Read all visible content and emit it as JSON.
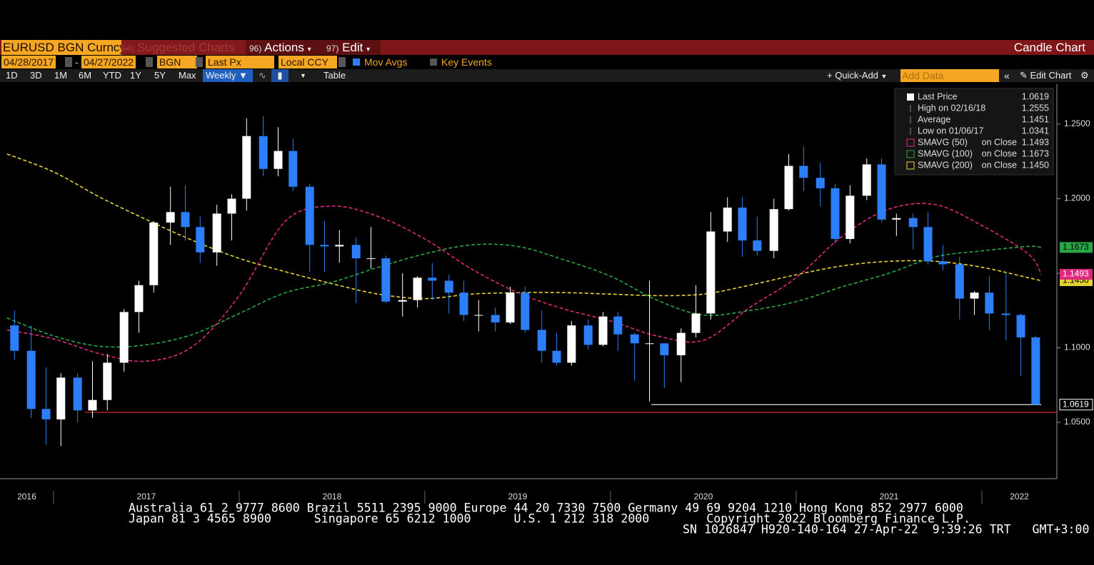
{
  "toolbar": {
    "ticker": "EURUSD BGN Curncy",
    "menus": [
      {
        "num": "94)",
        "label": "Suggested Charts"
      },
      {
        "num": "96)",
        "label": "Actions"
      },
      {
        "num": "97)",
        "label": "Edit"
      }
    ],
    "chart_type": "Candle Chart"
  },
  "settings": {
    "start": "04/28/2017",
    "end": "04/27/2022",
    "source": "BGN",
    "field": "Last Px",
    "currency": "Local CCY",
    "toggles": [
      "Mov Avgs",
      "Key Events"
    ]
  },
  "periods": [
    "1D",
    "3D",
    "1M",
    "6M",
    "YTD",
    "1Y",
    "5Y",
    "Max"
  ],
  "frequency": "Weekly",
  "view": "Table",
  "quick_add": "Quick-Add",
  "add_data": "Add Data",
  "edit_chart": "Edit Chart",
  "chart_data": {
    "type": "candlestick",
    "xlim": [
      2016.712,
      2022.404
    ],
    "ylim": [
      1.0127,
      1.2768
    ],
    "xticks": [
      {
        "value": 2016,
        "label": "2016"
      },
      {
        "value": 2017,
        "label": "2017"
      },
      {
        "value": 2018,
        "label": "2018"
      },
      {
        "value": 2019,
        "label": "2019"
      },
      {
        "value": 2020,
        "label": "2020"
      },
      {
        "value": 2021,
        "label": "2021"
      },
      {
        "value": 2022,
        "label": "2022"
      }
    ],
    "yticks": [
      {
        "value": 1.05,
        "label": "1.0500"
      },
      {
        "value": 1.1,
        "label": "1.1000"
      },
      {
        "value": 1.15,
        "label": "1.1500"
      },
      {
        "value": 1.2,
        "label": "1.2000"
      },
      {
        "value": 1.25,
        "label": "1.2500"
      }
    ],
    "up_color": "#ffffff",
    "down_color": "#2d7ff9",
    "candles": {
      "x": [
        2016.79,
        2016.88,
        2016.96,
        2017.04,
        2017.13,
        2017.21,
        2017.29,
        2017.38,
        2017.46,
        2017.54,
        2017.63,
        2017.71,
        2017.79,
        2017.88,
        2017.96,
        2018.04,
        2018.13,
        2018.21,
        2018.29,
        2018.38,
        2018.46,
        2018.54,
        2018.63,
        2018.71,
        2018.79,
        2018.88,
        2018.96,
        2019.04,
        2019.13,
        2019.21,
        2019.29,
        2019.38,
        2019.46,
        2019.54,
        2019.63,
        2019.71,
        2019.79,
        2019.88,
        2019.96,
        2020.04,
        2020.13,
        2020.21,
        2020.29,
        2020.38,
        2020.46,
        2020.54,
        2020.63,
        2020.71,
        2020.79,
        2020.88,
        2020.96,
        2021.04,
        2021.13,
        2021.21,
        2021.29,
        2021.38,
        2021.46,
        2021.54,
        2021.63,
        2021.71,
        2021.79,
        2021.88,
        2021.96,
        2022.04,
        2022.13,
        2022.21,
        2022.29
      ],
      "open": [
        1.115,
        1.098,
        1.059,
        1.052,
        1.08,
        1.058,
        1.065,
        1.09,
        1.124,
        1.142,
        1.184,
        1.191,
        1.181,
        1.164,
        1.19,
        1.2,
        1.242,
        1.22,
        1.232,
        1.208,
        1.169,
        1.168,
        1.169,
        1.16,
        1.16,
        1.131,
        1.132,
        1.147,
        1.145,
        1.137,
        1.122,
        1.122,
        1.117,
        1.137,
        1.112,
        1.098,
        1.09,
        1.115,
        1.102,
        1.121,
        1.109,
        1.103,
        1.103,
        1.095,
        1.11,
        1.123,
        1.178,
        1.194,
        1.172,
        1.165,
        1.193,
        1.222,
        1.214,
        1.207,
        1.173,
        1.202,
        1.223,
        1.186,
        1.187,
        1.181,
        1.158,
        1.156,
        1.133,
        1.137,
        1.123,
        1.122,
        1.107
      ],
      "high": [
        1.125,
        1.115,
        1.087,
        1.083,
        1.083,
        1.091,
        1.096,
        1.126,
        1.145,
        1.185,
        1.208,
        1.209,
        1.188,
        1.196,
        1.203,
        1.254,
        1.2555,
        1.248,
        1.24,
        1.21,
        1.185,
        1.179,
        1.174,
        1.181,
        1.162,
        1.15,
        1.148,
        1.157,
        1.149,
        1.145,
        1.132,
        1.127,
        1.141,
        1.141,
        1.125,
        1.11,
        1.118,
        1.119,
        1.124,
        1.124,
        1.11,
        1.145,
        1.103,
        1.113,
        1.142,
        1.191,
        1.201,
        1.201,
        1.188,
        1.2,
        1.23,
        1.235,
        1.224,
        1.21,
        1.209,
        1.227,
        1.227,
        1.19,
        1.19,
        1.191,
        1.169,
        1.161,
        1.138,
        1.148,
        1.15,
        1.123,
        1.108
      ],
      "low": [
        1.092,
        1.053,
        1.035,
        1.0341,
        1.05,
        1.053,
        1.058,
        1.084,
        1.11,
        1.137,
        1.169,
        1.172,
        1.157,
        1.155,
        1.172,
        1.192,
        1.215,
        1.215,
        1.205,
        1.151,
        1.151,
        1.157,
        1.13,
        1.153,
        1.13,
        1.121,
        1.127,
        1.132,
        1.123,
        1.118,
        1.111,
        1.111,
        1.116,
        1.11,
        1.09,
        1.088,
        1.088,
        1.099,
        1.101,
        1.098,
        1.078,
        1.064,
        1.073,
        1.077,
        1.107,
        1.119,
        1.171,
        1.161,
        1.162,
        1.16,
        1.192,
        1.205,
        1.195,
        1.17,
        1.17,
        1.199,
        1.184,
        1.175,
        1.166,
        1.156,
        1.152,
        1.119,
        1.122,
        1.112,
        1.105,
        1.081,
        1.0619
      ],
      "close": [
        1.098,
        1.059,
        1.052,
        1.08,
        1.058,
        1.065,
        1.09,
        1.124,
        1.142,
        1.184,
        1.191,
        1.181,
        1.164,
        1.19,
        1.2,
        1.242,
        1.22,
        1.232,
        1.208,
        1.169,
        1.168,
        1.169,
        1.16,
        1.16,
        1.131,
        1.132,
        1.147,
        1.145,
        1.137,
        1.122,
        1.122,
        1.117,
        1.137,
        1.112,
        1.098,
        1.09,
        1.115,
        1.102,
        1.121,
        1.109,
        1.103,
        1.103,
        1.095,
        1.11,
        1.123,
        1.178,
        1.194,
        1.172,
        1.165,
        1.193,
        1.222,
        1.214,
        1.207,
        1.173,
        1.202,
        1.223,
        1.186,
        1.187,
        1.181,
        1.158,
        1.156,
        1.133,
        1.137,
        1.123,
        1.122,
        1.107,
        1.0619
      ]
    },
    "ma_x": [
      2016.75,
      2017,
      2017.25,
      2017.5,
      2017.75,
      2018,
      2018.25,
      2018.5,
      2018.75,
      2019,
      2019.25,
      2019.5,
      2019.75,
      2020,
      2020.25,
      2020.5,
      2020.75,
      2021,
      2021.25,
      2021.5,
      2021.75,
      2022,
      2022.25,
      2022.32
    ],
    "series": [
      {
        "name": "SMAVG (50)",
        "note": "on Close",
        "color": "#e0287e",
        "line_style": "dashed",
        "last_value": 1.1493,
        "values": [
          1.112,
          1.106,
          1.096,
          1.091,
          1.101,
          1.135,
          1.185,
          1.195,
          1.188,
          1.173,
          1.153,
          1.137,
          1.126,
          1.118,
          1.108,
          1.105,
          1.127,
          1.147,
          1.175,
          1.193,
          1.196,
          1.182,
          1.163,
          1.1493
        ]
      },
      {
        "name": "SMAVG (100)",
        "note": "on Close",
        "color": "#27a844",
        "line_style": "dashed",
        "last_value": 1.1673,
        "values": [
          1.12,
          1.108,
          1.101,
          1.102,
          1.109,
          1.123,
          1.137,
          1.144,
          1.154,
          1.163,
          1.169,
          1.168,
          1.159,
          1.148,
          1.132,
          1.122,
          1.125,
          1.131,
          1.141,
          1.15,
          1.161,
          1.165,
          1.168,
          1.1673
        ]
      },
      {
        "name": "SMAVG (200)",
        "note": "on Close",
        "color": "#e6d332",
        "line_style": "dashed",
        "last_value": {
          "value": 1.145,
          "label": "1.1450"
        },
        "values": [
          1.23,
          1.218,
          1.201,
          1.186,
          1.172,
          1.16,
          1.151,
          1.143,
          1.136,
          1.133,
          1.136,
          1.137,
          1.137,
          1.136,
          1.135,
          1.136,
          1.142,
          1.149,
          1.155,
          1.158,
          1.158,
          1.154,
          1.147,
          1.145
        ]
      }
    ],
    "ref_lines": [
      {
        "value": 1.0619,
        "x": [
          2020.22,
          2022.32
        ],
        "color": "#ffffff"
      },
      {
        "value": 1.0567,
        "x": [
          2017.17,
          2022.404
        ],
        "color": "#d02020"
      }
    ],
    "stats": [
      {
        "label": "Last Price",
        "value": 1.0619
      },
      {
        "label": "High on 02/16/18",
        "value": 1.2555
      },
      {
        "label": "Average",
        "value": 1.1451
      },
      {
        "label": "Low on 01/06/17",
        "value": 1.0341
      }
    ]
  },
  "footer": [
    "Australia 61 2 9777 8600 Brazil 5511 2395 9000 Europe 44 20 7330 7500 Germany 49 69 9204 1210 Hong Kong 852 2977 6000",
    "Japan 81 3 4565 8900      Singapore 65 6212 1000      U.S. 1 212 318 2000        Copyright 2022 Bloomberg Finance L.P.",
    "SN 1026847 H920-140-164 27-Apr-22  9:39:26 TRT   GMT+3:00"
  ]
}
